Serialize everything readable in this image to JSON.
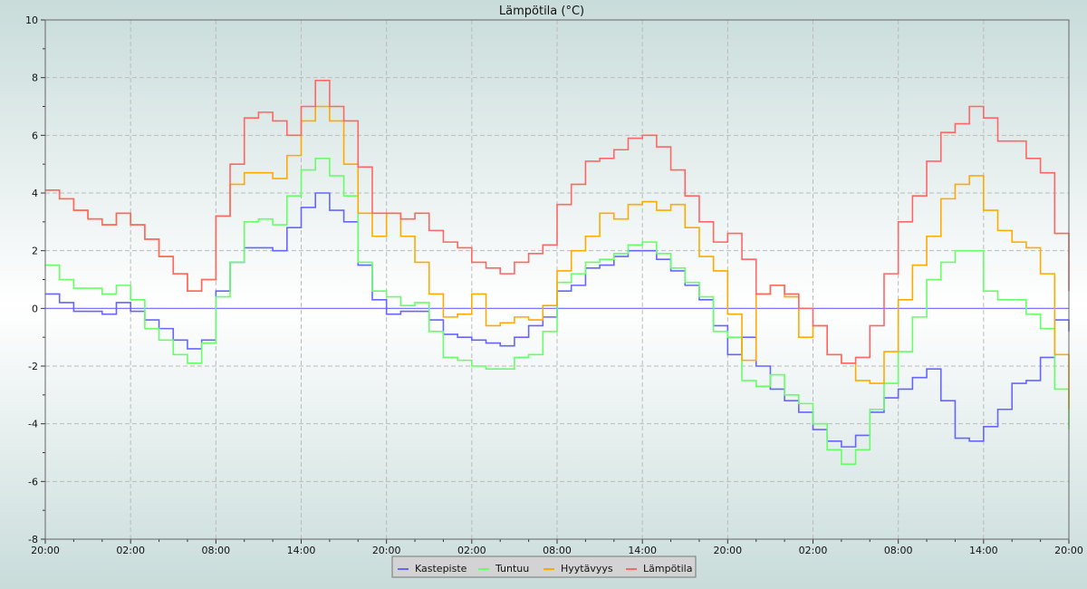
{
  "chart_data": {
    "type": "line",
    "title": "Lämpötila (°C)",
    "xlabel": "",
    "ylabel": "",
    "ylim": [
      -8,
      10
    ],
    "yticks": [
      -8,
      -6,
      -4,
      -2,
      0,
      2,
      4,
      6,
      8,
      10
    ],
    "x_hours_range": [
      0,
      72
    ],
    "xtick_labels": [
      "20:00",
      "02:00",
      "08:00",
      "14:00",
      "20:00",
      "02:00",
      "08:00",
      "14:00",
      "20:00",
      "02:00",
      "08:00",
      "14:00",
      "20:00"
    ],
    "grid": true,
    "legend_position": "bottom-center",
    "x_hours": [
      0,
      1,
      2,
      3,
      4,
      5,
      6,
      7,
      8,
      9,
      10,
      11,
      12,
      13,
      14,
      15,
      16,
      17,
      18,
      19,
      20,
      21,
      22,
      23,
      24,
      25,
      26,
      27,
      28,
      29,
      30,
      31,
      32,
      33,
      34,
      35,
      36,
      37,
      38,
      39,
      40,
      41,
      42,
      43,
      44,
      45,
      46,
      47,
      48,
      49,
      50,
      51,
      52,
      53,
      54,
      55,
      56,
      57,
      58,
      59,
      60,
      61,
      62,
      63,
      64,
      65,
      66,
      67,
      68,
      69,
      70,
      71,
      72
    ],
    "series": [
      {
        "name": "Kastepiste",
        "color": "#6666ff",
        "values": [
          0.5,
          0.2,
          -0.1,
          -0.1,
          -0.2,
          0.2,
          -0.1,
          -0.4,
          -0.7,
          -1.1,
          -1.4,
          -1.1,
          0.6,
          1.6,
          2.1,
          2.1,
          2.0,
          2.8,
          3.5,
          4.0,
          3.4,
          3.0,
          1.5,
          0.3,
          -0.2,
          -0.1,
          -0.1,
          -0.4,
          -0.9,
          -1.0,
          -1.1,
          -1.2,
          -1.3,
          -1.0,
          -0.6,
          -0.3,
          0.6,
          0.8,
          1.4,
          1.5,
          1.8,
          2.0,
          2.0,
          1.7,
          1.3,
          0.8,
          0.3,
          -0.6,
          -1.6,
          -1.0,
          -2.0,
          -2.8,
          -3.2,
          -3.6,
          -4.2,
          -4.6,
          -4.8,
          -4.4,
          -3.6,
          -3.1,
          -2.8,
          -2.4,
          -2.1,
          -3.2,
          -4.5,
          -4.6,
          -4.1,
          -3.5,
          -2.6,
          -2.5,
          -1.7,
          -0.4,
          -0.8
        ]
      },
      {
        "name": "Tuntuu",
        "color": "#66ff66",
        "values": [
          1.5,
          1.0,
          0.7,
          0.7,
          0.5,
          0.8,
          0.3,
          -0.7,
          -1.1,
          -1.6,
          -1.9,
          -1.2,
          0.4,
          1.6,
          3.0,
          3.1,
          2.9,
          3.9,
          4.8,
          5.2,
          4.6,
          3.9,
          1.6,
          0.6,
          0.4,
          0.1,
          0.2,
          -0.8,
          -1.7,
          -1.8,
          -2.0,
          -2.1,
          -2.1,
          -1.7,
          -1.6,
          -0.8,
          0.9,
          1.2,
          1.6,
          1.7,
          1.9,
          2.2,
          2.3,
          1.9,
          1.4,
          0.9,
          0.4,
          -0.8,
          -1.0,
          -2.5,
          -2.7,
          -2.3,
          -3.0,
          -3.3,
          -4.0,
          -4.9,
          -5.4,
          -4.9,
          -3.5,
          -2.6,
          -1.5,
          -0.3,
          1.0,
          1.6,
          2.0,
          2.0,
          0.6,
          0.3,
          0.3,
          -0.2,
          -0.7,
          -2.8,
          -4.2
        ]
      },
      {
        "name": "Hyytävyys",
        "color": "#ffaa00",
        "values": [
          4.1,
          3.8,
          3.4,
          3.1,
          2.9,
          3.3,
          2.9,
          2.4,
          1.8,
          1.2,
          0.6,
          1.0,
          3.2,
          4.3,
          4.7,
          4.7,
          4.5,
          5.3,
          6.5,
          7.0,
          6.5,
          5.0,
          3.3,
          2.5,
          3.3,
          2.5,
          1.6,
          0.5,
          -0.3,
          -0.2,
          0.5,
          -0.6,
          -0.5,
          -0.3,
          -0.4,
          0.1,
          1.3,
          2.0,
          2.5,
          3.3,
          3.1,
          3.6,
          3.7,
          3.4,
          3.6,
          2.8,
          1.8,
          1.3,
          -0.2,
          -1.8,
          0.5,
          0.8,
          0.4,
          -1.0,
          -0.6,
          -1.6,
          -1.9,
          -2.5,
          -2.6,
          -1.5,
          0.3,
          1.5,
          2.5,
          3.8,
          4.3,
          4.6,
          3.4,
          2.7,
          2.3,
          2.1,
          1.2,
          -1.6,
          -3.5
        ]
      },
      {
        "name": "Lämpötila",
        "color": "#ff6666",
        "values": [
          4.1,
          3.8,
          3.4,
          3.1,
          2.9,
          3.3,
          2.9,
          2.4,
          1.8,
          1.2,
          0.6,
          1.0,
          3.2,
          5.0,
          6.6,
          6.8,
          6.5,
          6.0,
          7.0,
          7.9,
          7.0,
          6.5,
          4.9,
          3.3,
          3.3,
          3.1,
          3.3,
          2.7,
          2.3,
          2.1,
          1.6,
          1.4,
          1.2,
          1.6,
          1.9,
          2.2,
          3.6,
          4.3,
          5.1,
          5.2,
          5.5,
          5.9,
          6.0,
          5.6,
          4.8,
          3.9,
          3.0,
          2.3,
          2.6,
          1.7,
          0.5,
          0.8,
          0.5,
          0.0,
          -0.6,
          -1.6,
          -1.9,
          -1.7,
          -0.6,
          1.2,
          3.0,
          3.9,
          5.1,
          6.1,
          6.4,
          7.0,
          6.6,
          5.8,
          5.8,
          5.2,
          4.7,
          2.6,
          0.6
        ]
      }
    ]
  }
}
